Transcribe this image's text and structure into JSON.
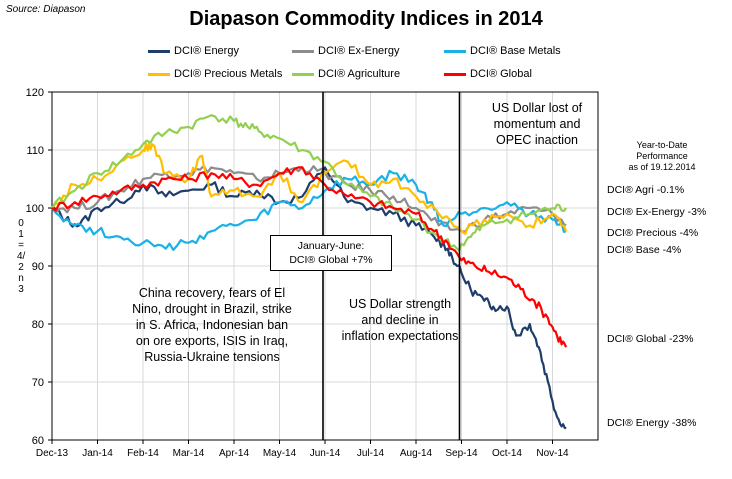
{
  "source": "Source: Diapason",
  "chart_data": {
    "type": "line",
    "title": "Diapason Commodity Indices in 2014",
    "ylabel": "01=4/2 n3",
    "ylim": [
      60,
      120
    ],
    "yticks": [
      60,
      70,
      80,
      90,
      100,
      110,
      120
    ],
    "x_ticks": [
      "Dec-13",
      "Jan-14",
      "Feb-14",
      "Mar-14",
      "Apr-14",
      "May-14",
      "Jun-14",
      "Jul-14",
      "Aug-14",
      "Sep-14",
      "Oct-14",
      "Nov-14"
    ],
    "grid": true,
    "legend_position": "top",
    "series": [
      {
        "name": "DCI® Energy",
        "color": "#1f3d6b",
        "x": [
          0,
          0.3,
          0.6,
          1,
          1.5,
          2,
          2.5,
          3,
          3.5,
          4,
          4.5,
          5,
          5.5,
          6,
          6.5,
          7,
          7.5,
          8,
          8.4,
          8.7,
          8.9,
          9.2,
          9.5,
          9.7,
          10,
          10.2,
          10.5,
          10.7,
          10.9,
          11.1,
          11.3
        ],
        "values": [
          100,
          98,
          97,
          100,
          101,
          104,
          102,
          103,
          104,
          102,
          103,
          101,
          102,
          107,
          101,
          100,
          99,
          97,
          95,
          93,
          90,
          86,
          84,
          83,
          83,
          78,
          80,
          76,
          70,
          64,
          62
        ]
      },
      {
        "name": "DCI® Ex-Energy",
        "color": "#8c8c8c",
        "x": [
          0,
          0.5,
          1,
          1.5,
          2,
          2.5,
          3,
          3.5,
          4,
          4.5,
          5,
          5.5,
          6,
          6.5,
          7,
          7.5,
          8,
          8.5,
          9,
          9.5,
          10,
          10.5,
          11,
          11.3
        ],
        "values": [
          100,
          100,
          101,
          103,
          105,
          106,
          106,
          107,
          106,
          105,
          106,
          107,
          106,
          104,
          103,
          102,
          100,
          97,
          96,
          98,
          99,
          100,
          99,
          97
        ]
      },
      {
        "name": "DCI® Base Metals",
        "color": "#1ab0e8",
        "x": [
          0,
          0.5,
          1,
          1.5,
          2,
          2.5,
          3,
          3.5,
          4,
          4.5,
          5,
          5.5,
          6,
          6.5,
          7,
          7.5,
          8,
          8.3,
          8.6,
          9,
          9.5,
          10,
          10.5,
          11,
          11.3
        ],
        "values": [
          100,
          97,
          96,
          95,
          94,
          93,
          94,
          96,
          97,
          98,
          101,
          100,
          103,
          105,
          104,
          106,
          104,
          101,
          97,
          99,
          100,
          101,
          99,
          98,
          96
        ]
      },
      {
        "name": "DCI® Precious Metals",
        "color": "#ffbf00",
        "x": [
          0,
          0.5,
          1,
          1.5,
          2,
          2.2,
          2.5,
          3,
          3.3,
          3.5,
          4,
          4.5,
          5,
          5.5,
          6,
          6.5,
          7,
          7.5,
          8,
          8.5,
          9,
          9.5,
          10,
          10.5,
          11,
          11.3
        ],
        "values": [
          100,
          104,
          105,
          108,
          110,
          111,
          106,
          105,
          109,
          102,
          103,
          102,
          106,
          101,
          106,
          108,
          104,
          105,
          102,
          99,
          96,
          98,
          99,
          97,
          99,
          96
        ]
      },
      {
        "name": "DCI® Agriculture",
        "color": "#92d050",
        "x": [
          0,
          0.5,
          1,
          1.5,
          2,
          2.5,
          3,
          3.5,
          4,
          4.3,
          4.6,
          5,
          5.5,
          6,
          6.5,
          7,
          7.5,
          8,
          8.5,
          8.9,
          9.2,
          9.5,
          10,
          10.5,
          11,
          11.3
        ],
        "values": [
          100,
          103,
          106,
          108,
          111,
          113,
          114,
          116,
          115,
          114,
          113,
          112,
          110,
          108,
          104,
          102,
          100,
          98,
          95,
          93,
          95,
          97,
          98,
          99,
          100,
          100
        ]
      },
      {
        "name": "DCI® Global",
        "color": "#ff0000",
        "x": [
          0,
          0.5,
          1,
          1.5,
          2,
          2.5,
          3,
          3.5,
          4,
          4.5,
          5,
          5.5,
          6,
          6.5,
          7,
          7.5,
          8,
          8.4,
          8.7,
          9,
          9.3,
          9.6,
          10,
          10.3,
          10.6,
          10.9,
          11.1,
          11.3
        ],
        "values": [
          100,
          101,
          102,
          103,
          104,
          105,
          105,
          106,
          105,
          104,
          106,
          107,
          104,
          102,
          101,
          100,
          99,
          96,
          94,
          91,
          90,
          89,
          88,
          86,
          84,
          81,
          78,
          76
        ]
      }
    ],
    "annotations": [
      "China recovery, fears of El Nino, drought in Brazil, strike in S. Africa, Indonesian ban on ore exports, ISIS in Iraq, Russia-Ukraine tensions",
      "US Dollar strength and decline in inflation expectations",
      "US Dollar lost of momentum  and OPEC inaction"
    ],
    "box_annotation": [
      "January-June:",
      "DCI® Global +7%"
    ],
    "ytd_header": [
      "Year-to-Date",
      "Performance",
      "as of 19.12.2014"
    ],
    "end_labels": [
      "DCI® Agri -0.1%",
      "DCI® Ex-Energy -3%",
      "DCI® Precious -4%",
      "DCI® Base -4%",
      "DCI® Global -23%",
      "DCI® Energy -38%"
    ]
  }
}
